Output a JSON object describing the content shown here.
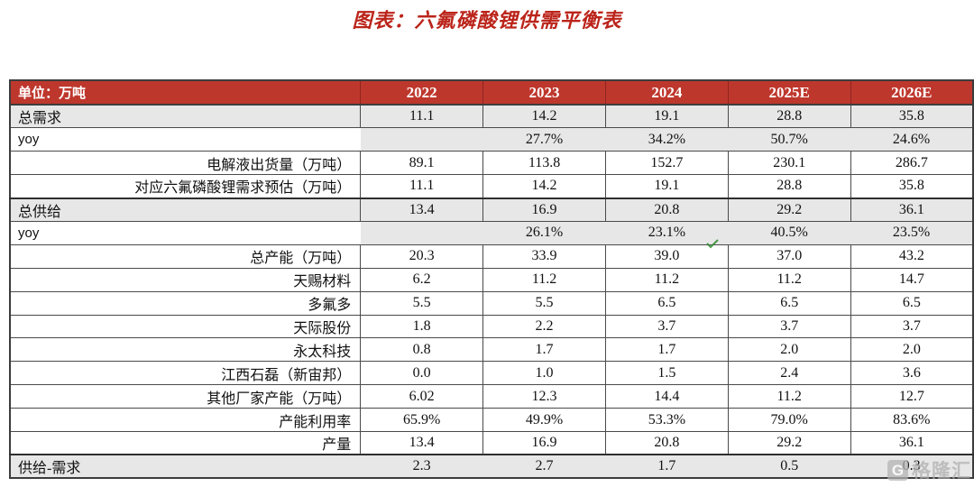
{
  "page": {
    "title": "图表：六氟磷酸锂供需平衡表"
  },
  "watermark": {
    "brand": "格隆汇",
    "logo_glyph": "G"
  },
  "colors": {
    "header_bg": "#be372d",
    "title_red": "#bb241a",
    "row_grey": "#e7e7e7",
    "green_mark": "#2e8b2e",
    "watermark_grey": "#adadad"
  },
  "chart_data": {
    "type": "table",
    "title": "图表：六氟磷酸锂供需平衡表",
    "corner_label": "单位：万吨",
    "columns": [
      "2022",
      "2023",
      "2024",
      "2025E",
      "2026E"
    ],
    "rows": [
      {
        "label": "总需求",
        "align": "left",
        "bg": "grey",
        "merged": false,
        "section_top": false,
        "values": [
          "11.1",
          "14.2",
          "19.1",
          "28.8",
          "35.8"
        ]
      },
      {
        "label": "yoy",
        "align": "left",
        "bg": "values-grey",
        "merged": true,
        "section_top": false,
        "values": [
          "",
          "27.7%",
          "34.2%",
          "50.7%",
          "24.6%"
        ]
      },
      {
        "label": "电解液出货量（万吨）",
        "align": "right",
        "bg": "white",
        "merged": false,
        "section_top": false,
        "values": [
          "89.1",
          "113.8",
          "152.7",
          "230.1",
          "286.7"
        ]
      },
      {
        "label": "对应六氟磷酸锂需求预估（万吨）",
        "align": "right",
        "bg": "white",
        "merged": false,
        "section_top": false,
        "values": [
          "11.1",
          "14.2",
          "19.1",
          "28.8",
          "35.8"
        ]
      },
      {
        "label": "总供给",
        "align": "left",
        "bg": "grey",
        "merged": false,
        "section_top": true,
        "values": [
          "13.4",
          "16.9",
          "20.8",
          "29.2",
          "36.1"
        ]
      },
      {
        "label": "yoy",
        "align": "left",
        "bg": "values-grey",
        "merged": true,
        "section_top": false,
        "values": [
          "",
          "26.1%",
          "23.1%",
          "40.5%",
          "23.5%"
        ]
      },
      {
        "label": "总产能（万吨）",
        "align": "right",
        "bg": "white",
        "merged": false,
        "section_top": false,
        "values": [
          "20.3",
          "33.9",
          "39.0",
          "37.0",
          "43.2"
        ]
      },
      {
        "label": "天赐材料",
        "align": "right",
        "bg": "white",
        "merged": false,
        "section_top": false,
        "values": [
          "6.2",
          "11.2",
          "11.2",
          "11.2",
          "14.7"
        ]
      },
      {
        "label": "多氟多",
        "align": "right",
        "bg": "white",
        "merged": false,
        "section_top": false,
        "values": [
          "5.5",
          "5.5",
          "6.5",
          "6.5",
          "6.5"
        ]
      },
      {
        "label": "天际股份",
        "align": "right",
        "bg": "white",
        "merged": false,
        "section_top": false,
        "values": [
          "1.8",
          "2.2",
          "3.7",
          "3.7",
          "3.7"
        ]
      },
      {
        "label": "永太科技",
        "align": "right",
        "bg": "white",
        "merged": false,
        "section_top": false,
        "values": [
          "0.8",
          "1.7",
          "1.7",
          "2.0",
          "2.0"
        ]
      },
      {
        "label": "江西石磊（新宙邦）",
        "align": "right",
        "bg": "white",
        "merged": false,
        "section_top": false,
        "values": [
          "0.0",
          "1.0",
          "1.5",
          "2.4",
          "3.6"
        ]
      },
      {
        "label": "其他厂家产能（万吨）",
        "align": "right",
        "bg": "white",
        "merged": false,
        "section_top": false,
        "values": [
          "6.02",
          "12.3",
          "14.4",
          "11.2",
          "12.7"
        ]
      },
      {
        "label": "产能利用率",
        "align": "right",
        "bg": "white",
        "merged": false,
        "section_top": false,
        "values": [
          "65.9%",
          "49.9%",
          "53.3%",
          "79.0%",
          "83.6%"
        ]
      },
      {
        "label": "产量",
        "align": "right",
        "bg": "white",
        "merged": false,
        "section_top": false,
        "values": [
          "13.4",
          "16.9",
          "20.8",
          "29.2",
          "36.1"
        ]
      },
      {
        "label": "供给-需求",
        "align": "left",
        "bg": "grey",
        "merged": true,
        "section_top": true,
        "values": [
          "2.3",
          "2.7",
          "1.7",
          "0.5",
          "0.3"
        ]
      }
    ]
  }
}
